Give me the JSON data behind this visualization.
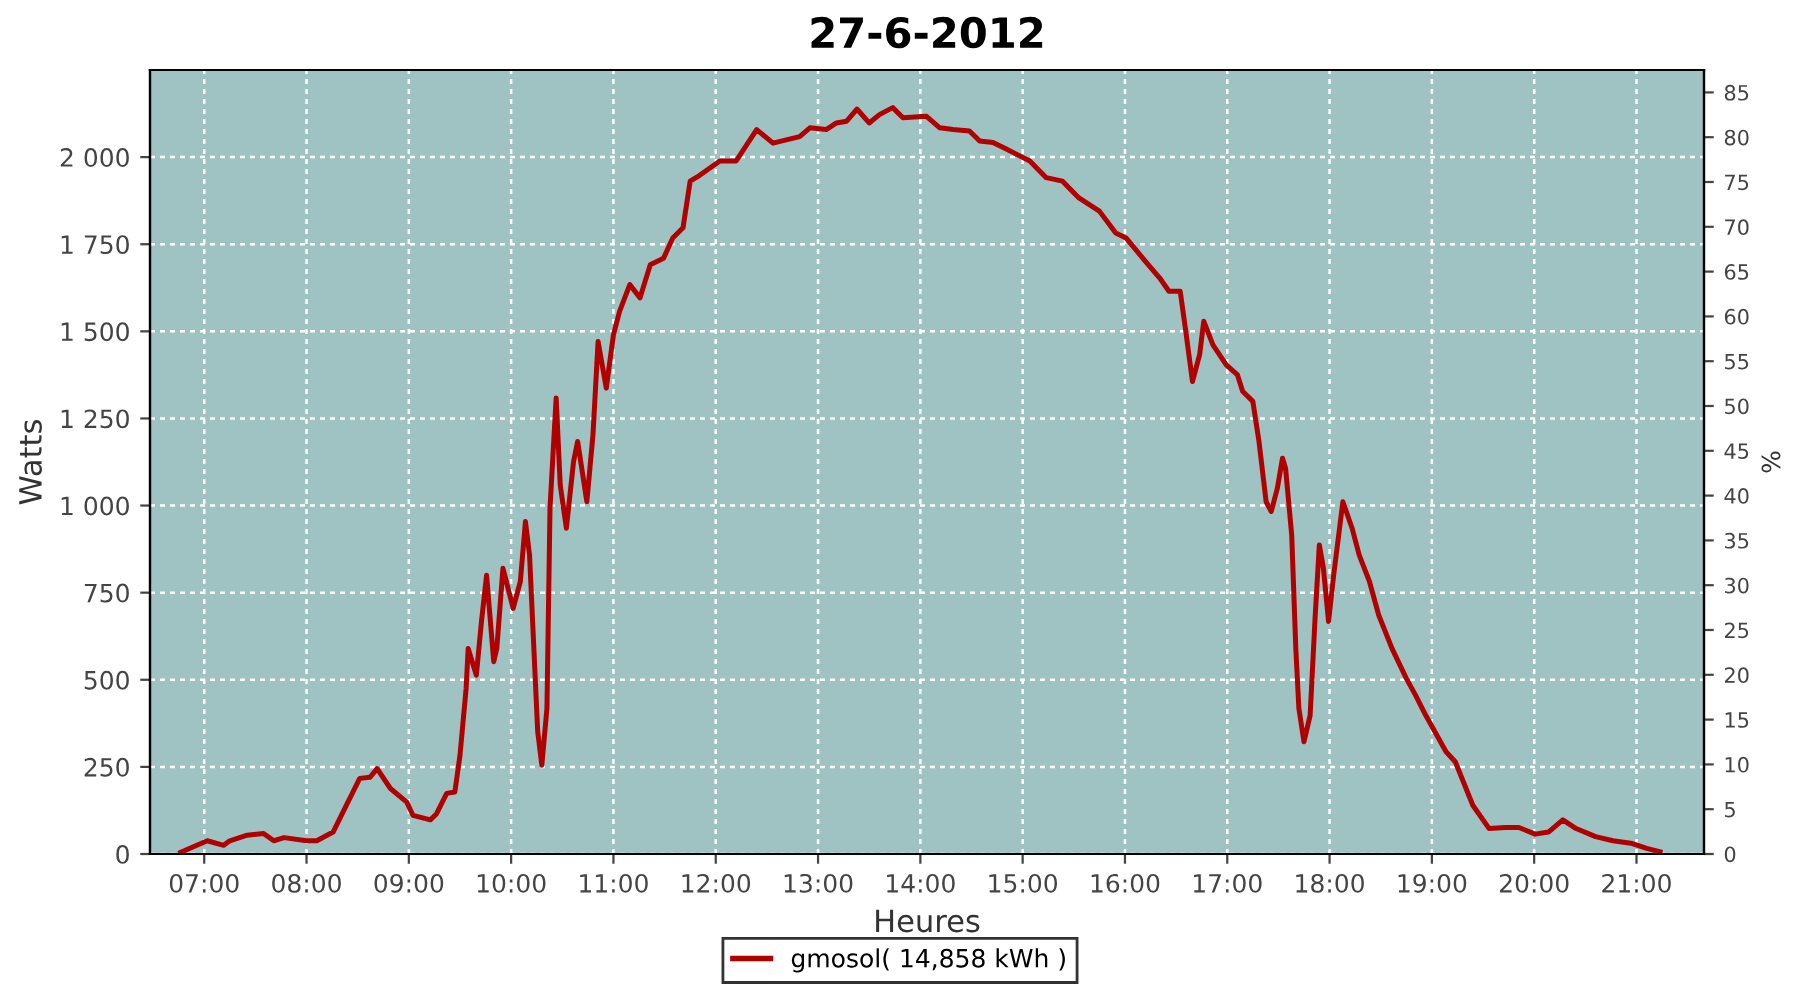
{
  "chart_data": {
    "type": "line",
    "title": "27-6-2012",
    "xlabel": "Heures",
    "ylabel": "Watts",
    "y2label": "%",
    "xlim": [
      6.47,
      21.66
    ],
    "xticks": [
      {
        "value": 7,
        "label": "07:00"
      },
      {
        "value": 8,
        "label": "08:00"
      },
      {
        "value": 9,
        "label": "09:00"
      },
      {
        "value": 10,
        "label": "10:00"
      },
      {
        "value": 11,
        "label": "11:00"
      },
      {
        "value": 12,
        "label": "12:00"
      },
      {
        "value": 13,
        "label": "13:00"
      },
      {
        "value": 14,
        "label": "14:00"
      },
      {
        "value": 15,
        "label": "15:00"
      },
      {
        "value": 16,
        "label": "16:00"
      },
      {
        "value": 17,
        "label": "17:00"
      },
      {
        "value": 18,
        "label": "18:00"
      },
      {
        "value": 19,
        "label": "19:00"
      },
      {
        "value": 20,
        "label": "20:00"
      },
      {
        "value": 21,
        "label": "21:00"
      }
    ],
    "ylim": [
      0,
      2250
    ],
    "yticks": [
      0,
      250,
      500,
      750,
      {
        "value": 1000,
        "label": "1 000"
      },
      {
        "value": 1250,
        "label": "1 250"
      },
      {
        "value": 1500,
        "label": "1 500"
      },
      {
        "value": 1750,
        "label": "1 750"
      },
      {
        "value": 2000,
        "label": "2 000"
      }
    ],
    "y2lim": [
      0,
      87.5
    ],
    "y2ticks": [
      0,
      5,
      10,
      15,
      20,
      25,
      30,
      35,
      40,
      45,
      50,
      55,
      60,
      65,
      70,
      75,
      80,
      85
    ],
    "grid": true,
    "legend": "bottom",
    "line_style": "solid",
    "marker": "none",
    "series": [
      {
        "name": "gmosol( 14,858 kWh )",
        "color": "#b00000",
        "x": [
          6.77,
          7.03,
          7.19,
          7.25,
          7.42,
          7.58,
          7.68,
          7.78,
          8.0,
          8.1,
          8.26,
          8.39,
          8.52,
          8.62,
          8.69,
          8.82,
          8.98,
          9.04,
          9.21,
          9.27,
          9.37,
          9.45,
          9.5,
          9.56,
          9.58,
          9.66,
          9.71,
          9.76,
          9.83,
          9.86,
          9.92,
          10.02,
          10.09,
          10.14,
          10.18,
          10.26,
          10.3,
          10.35,
          10.38,
          10.44,
          10.48,
          10.54,
          10.61,
          10.65,
          10.74,
          10.8,
          10.85,
          10.93,
          11.0,
          11.06,
          11.16,
          11.26,
          11.36,
          11.49,
          11.58,
          11.68,
          11.75,
          11.84,
          12.04,
          12.2,
          12.4,
          12.56,
          12.82,
          12.92,
          13.08,
          13.18,
          13.28,
          13.38,
          13.5,
          13.6,
          13.73,
          13.83,
          14.06,
          14.19,
          14.32,
          14.48,
          14.58,
          14.71,
          14.84,
          15.07,
          15.23,
          15.39,
          15.55,
          15.75,
          15.91,
          16.01,
          16.2,
          16.34,
          16.43,
          16.54,
          16.59,
          16.66,
          16.73,
          16.77,
          16.86,
          16.99,
          17.1,
          17.15,
          17.25,
          17.31,
          17.38,
          17.43,
          17.49,
          17.54,
          17.57,
          17.63,
          17.67,
          17.7,
          17.75,
          17.81,
          17.86,
          17.9,
          17.94,
          17.99,
          18.04,
          18.13,
          18.22,
          18.29,
          18.39,
          18.48,
          18.61,
          18.75,
          18.84,
          18.94,
          19.14,
          19.23,
          19.4,
          19.56,
          19.72,
          19.85,
          20.01,
          20.14,
          20.28,
          20.41,
          20.6,
          20.77,
          20.96,
          21.1,
          21.23
        ],
        "values": [
          5,
          38,
          25,
          38,
          54,
          59,
          38,
          47,
          38,
          38,
          63,
          140,
          217,
          220,
          245,
          188,
          149,
          111,
          98,
          115,
          174,
          178,
          283,
          475,
          590,
          513,
          667,
          800,
          552,
          590,
          820,
          705,
          782,
          954,
          858,
          350,
          255,
          418,
          993,
          1309,
          1059,
          935,
          1126,
          1184,
          1011,
          1203,
          1471,
          1337,
          1490,
          1557,
          1634,
          1596,
          1691,
          1710,
          1768,
          1797,
          1931,
          1947,
          1989,
          1989,
          2079,
          2040,
          2059,
          2084,
          2079,
          2098,
          2103,
          2138,
          2098,
          2122,
          2142,
          2113,
          2117,
          2084,
          2079,
          2075,
          2046,
          2042,
          2023,
          1989,
          1941,
          1931,
          1883,
          1845,
          1782,
          1768,
          1701,
          1653,
          1615,
          1615,
          1510,
          1356,
          1433,
          1529,
          1461,
          1404,
          1375,
          1328,
          1299,
          1184,
          1011,
          983,
          1050,
          1136,
          1107,
          915,
          590,
          418,
          322,
          398,
          686,
          887,
          820,
          667,
          800,
          1011,
          935,
          858,
          782,
          686,
          590,
          504,
          456,
          398,
          293,
          264,
          140,
          73,
          76,
          76,
          57,
          63,
          98,
          73,
          50,
          38,
          30,
          16,
          6
        ]
      }
    ]
  }
}
